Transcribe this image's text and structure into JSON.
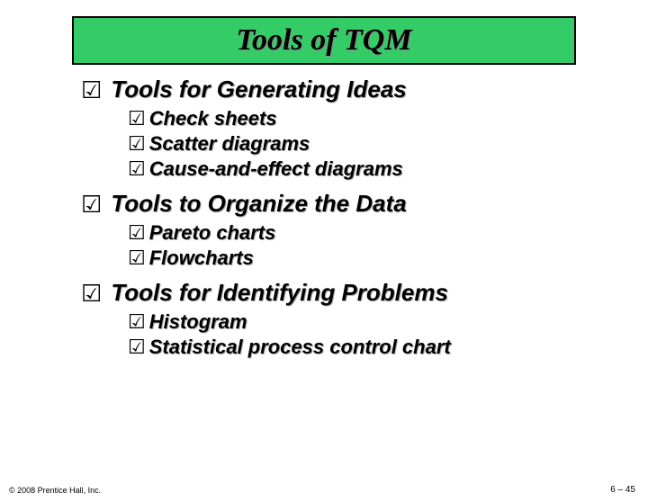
{
  "title": "Tools of TQM",
  "title_box": {
    "background": "#33cc66",
    "border_color": "#000000"
  },
  "bullet_glyph": "☑",
  "sections": [
    {
      "heading": "Tools for Generating Ideas",
      "items": [
        "Check sheets",
        "Scatter diagrams",
        "Cause-and-effect diagrams"
      ]
    },
    {
      "heading": "Tools to Organize the Data",
      "items": [
        "Pareto charts",
        "Flowcharts"
      ]
    },
    {
      "heading": "Tools for Identifying Problems",
      "items": [
        "Histogram",
        "Statistical process control chart"
      ]
    }
  ],
  "footer": {
    "left": "© 2008 Prentice Hall, Inc.",
    "right": "6 – 45"
  },
  "typography": {
    "title_font": "Times New Roman, italic bold",
    "body_font": "Arial, italic bold",
    "title_size_pt": 34,
    "section_size_pt": 26,
    "item_size_pt": 22,
    "footer_size_pt": 9
  },
  "colors": {
    "background": "#ffffff",
    "text": "#000000",
    "shadow": "#aaaaaa"
  }
}
